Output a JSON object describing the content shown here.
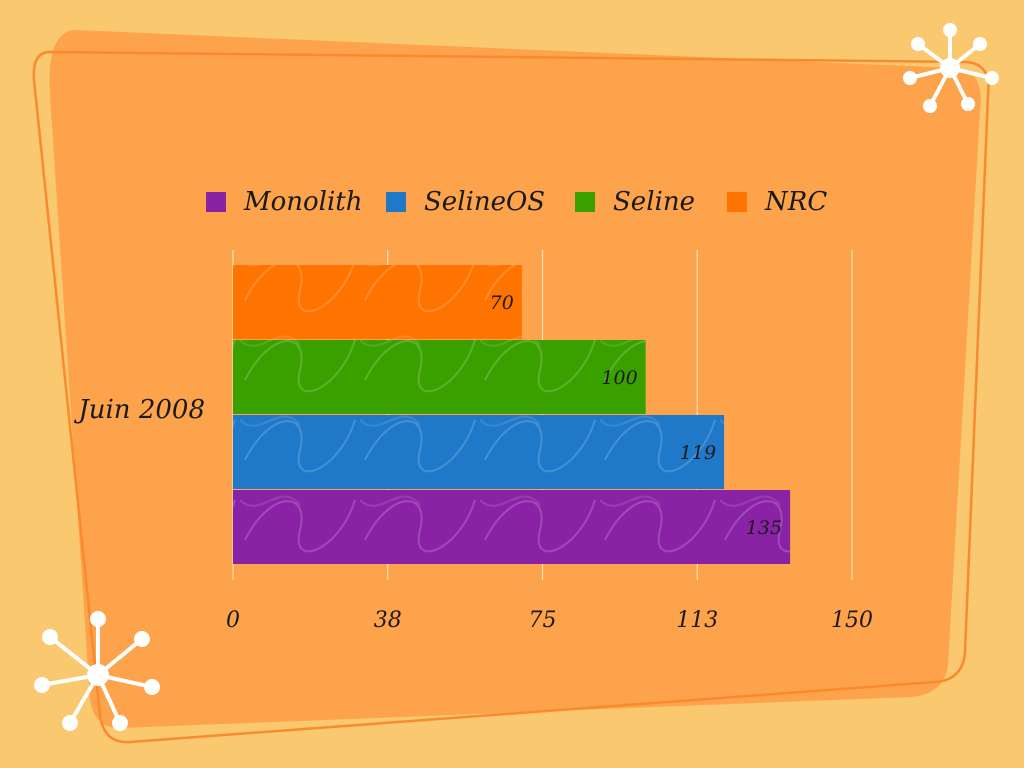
{
  "colors": {
    "background": "#f9c86f",
    "panel": "#fda34b",
    "panel_outline": "#f98a2e",
    "grid": "#fde0b8",
    "starburst": "#ffffff"
  },
  "decorations": [
    "starburst-icon",
    "starburst-icon"
  ],
  "chart_data": {
    "type": "bar",
    "orientation": "horizontal",
    "categories": [
      "Juin 2008"
    ],
    "series": [
      {
        "name": "Monolith",
        "values": [
          135
        ],
        "color": "#8a22a6"
      },
      {
        "name": "SelineOS",
        "values": [
          119
        ],
        "color": "#1f78c8"
      },
      {
        "name": "Seline",
        "values": [
          100
        ],
        "color": "#39a000"
      },
      {
        "name": "NRC",
        "values": [
          70
        ],
        "color": "#ff7300"
      }
    ],
    "xlim": [
      0,
      150
    ],
    "xticks": [
      "0",
      "38",
      "75",
      "113",
      "150"
    ],
    "data_labels": true,
    "legend": "top",
    "grid": true
  }
}
